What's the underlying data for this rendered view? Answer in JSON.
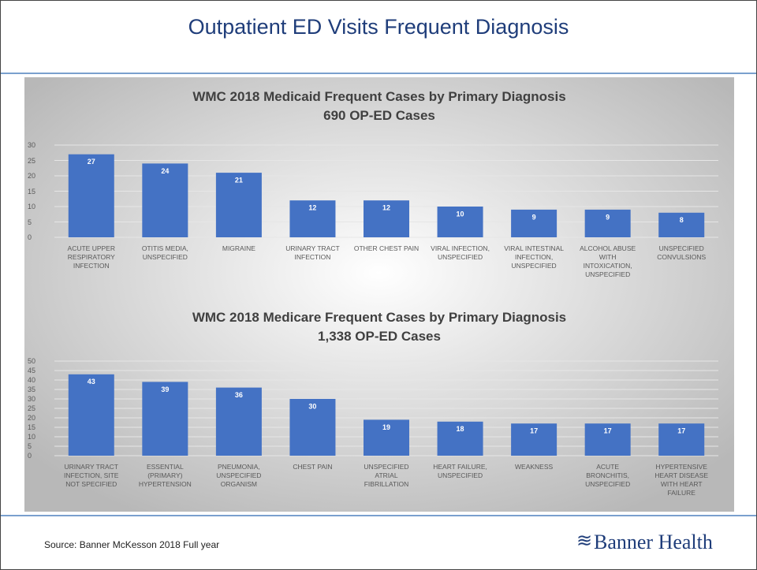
{
  "slide_title": "Outpatient ED Visits Frequent Diagnosis",
  "chart_data": [
    {
      "type": "bar",
      "title": "WMC 2018 Medicaid Frequent Cases by Primary Diagnosis",
      "subtitle": "690 OP-ED Cases",
      "categories": [
        "ACUTE UPPER RESPIRATORY INFECTION",
        "OTITIS MEDIA, UNSPECIFIED",
        "MIGRAINE",
        "URINARY TRACT INFECTION",
        "OTHER CHEST PAIN",
        "VIRAL INFECTION, UNSPECIFIED",
        "VIRAL INTESTINAL INFECTION, UNSPECIFIED",
        "ALCOHOL ABUSE WITH INTOXICATION, UNSPECIFIED",
        "UNSPECIFIED CONVULSIONS"
      ],
      "values": [
        27,
        24,
        21,
        12,
        12,
        10,
        9,
        9,
        8
      ],
      "color": "#4472c4",
      "ylim": [
        0,
        30
      ],
      "yticks": [
        0,
        5,
        10,
        15,
        20,
        25,
        30
      ],
      "grid": true
    },
    {
      "type": "bar",
      "title": "WMC 2018 Medicare Frequent Cases by Primary Diagnosis",
      "subtitle": "1,338 OP-ED Cases",
      "categories": [
        "URINARY TRACT INFECTION, SITE NOT SPECIFIED",
        "ESSENTIAL (PRIMARY) HYPERTENSION",
        "PNEUMONIA, UNSPECIFIED ORGANISM",
        "CHEST PAIN",
        "UNSPECIFIED ATRIAL FIBRILLATION",
        "HEART FAILURE, UNSPECIFIED",
        "WEAKNESS",
        "ACUTE BRONCHITIS, UNSPECIFIED",
        "HYPERTENSIVE HEART DISEASE WITH HEART FAILURE"
      ],
      "values": [
        43,
        39,
        36,
        30,
        19,
        18,
        17,
        17,
        17
      ],
      "color": "#4472c4",
      "ylim": [
        0,
        50
      ],
      "yticks": [
        0,
        5,
        10,
        15,
        20,
        25,
        30,
        35,
        40,
        45,
        50
      ],
      "grid": true
    }
  ],
  "footer": {
    "source": "Source: Banner McKesson 2018 Full year",
    "logo": "Banner Health"
  }
}
